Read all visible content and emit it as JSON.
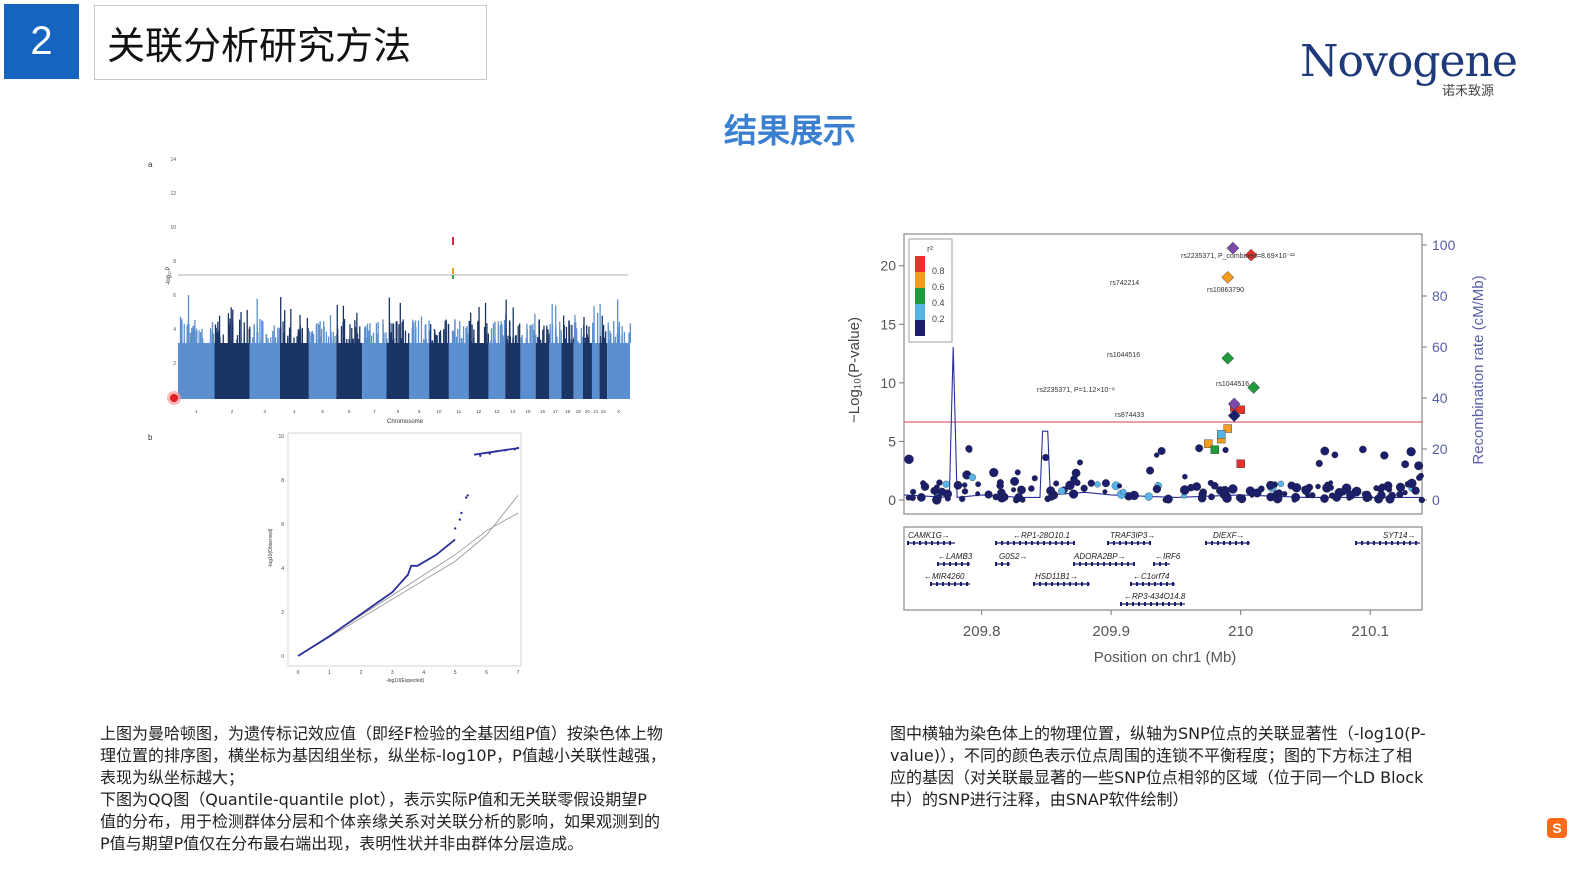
{
  "header": {
    "section_number": "2",
    "title": "关联分析研究方法",
    "logo_text": "Novogene",
    "logo_sub": "诺禾致源"
  },
  "slide": {
    "subtitle": "结果展示"
  },
  "left_figure": {
    "panel_a_label": "a",
    "panel_b_label": "b",
    "manhattan": {
      "x_axis_title": "Chromosome",
      "y_axis_title": "-log₁₀P",
      "y_ticks": [
        "2",
        "4",
        "6",
        "8",
        "10",
        "12",
        "14"
      ],
      "chromosomes": [
        "1",
        "2",
        "3",
        "4",
        "5",
        "6",
        "7",
        "8",
        "9",
        "10",
        "11",
        "12",
        "13",
        "14",
        "15",
        "16",
        "17",
        "18",
        "19",
        "20",
        "21",
        "22",
        "X"
      ],
      "colors": {
        "light": "#5b8fcf",
        "dark": "#1a3565"
      }
    },
    "qq": {
      "x_axis_title": "-log10(Expected)",
      "y_axis_title": "-log10(Observed)",
      "x_ticks": [
        "0",
        "1",
        "2",
        "3",
        "4",
        "5",
        "6",
        "7"
      ],
      "y_ticks": [
        "0",
        "2",
        "4",
        "6",
        "8",
        "10"
      ],
      "colors": {
        "observed": "#2a2f9a",
        "expected": "#9c9c9c"
      }
    },
    "caption_lines": [
      "上图为曼哈顿图，为遗传标记效应值（即经F检验的全基因组P值）按染色体上物",
      "理位置的排序图，横坐标为基因组坐标，纵坐标-log10P，P值越小关联性越强，",
      "表现为纵坐标越大；",
      "下图为QQ图（Quantile-quantile plot），表示实际P值和无关联零假设期望P",
      "值的分布，用于检测群体分层和个体亲缘关系对关联分析的影响，如果观测到的",
      "P值与期望P值仅在分布最右端出现，表明性状并非由群体分层造成。"
    ]
  },
  "right_figure": {
    "y_left_title": "−Log₁₀(P-value)",
    "y_right_title": "Recombination rate (cM/Mb)",
    "x_title": "Position on chr1 (Mb)",
    "x_ticks": [
      "209.8",
      "209.9",
      "210",
      "210.1"
    ],
    "y_left_ticks": [
      "0",
      "5",
      "10",
      "15",
      "20"
    ],
    "y_right_ticks": [
      "0",
      "20",
      "40",
      "60",
      "80",
      "100"
    ],
    "legend_title": "r²",
    "legend_items": [
      {
        "label": "0.8",
        "color": "#e8312a"
      },
      {
        "label": "0.6",
        "color": "#f39c1f"
      },
      {
        "label": "0.4",
        "color": "#1f9a3d"
      },
      {
        "label": "0.2",
        "color": "#58b4e6"
      },
      {
        "label": "",
        "color": "#1b1f6b"
      }
    ],
    "snp_labels": [
      {
        "text": "rs2235371, P_combined=8.69×10⁻²²"
      },
      {
        "text": "rs742214"
      },
      {
        "text": "rs10863790"
      },
      {
        "text": "rs1044516"
      },
      {
        "text": "rs1044516"
      },
      {
        "text": "rs2235371, P=1.12×10⁻⁸"
      },
      {
        "text": "rs874433"
      }
    ],
    "genes": [
      "CAMK1G→",
      "←RP1-28O10.1",
      "TRAF3IP3→",
      "DIEXF→",
      "SYT14→",
      "←LAMB3",
      "G0S2→",
      "ADORA2BP→",
      "←IRF6",
      "←MIR4260",
      "HSD11B1→",
      "←C1orf74",
      "←RP3-434O14.8"
    ],
    "caption_lines": [
      "图中横轴为染色体上的物理位置，纵轴为SNP位点的关联显著性（-log10(P-",
      "value)），不同的颜色表示位点周围的连锁不平衡程度；图的下方标注了相",
      "应的基因（对关联最显著的一些SNP位点相邻的区域（位于同一个LD Block",
      "中）的SNP进行注释，由SNAP软件绘制）"
    ]
  }
}
